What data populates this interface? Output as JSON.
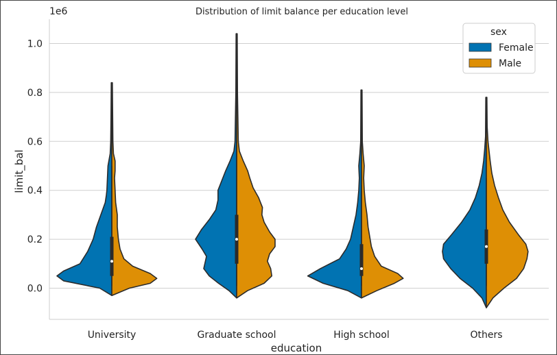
{
  "chart_data": {
    "type": "violin",
    "title": "Distribution of limit balance per education level",
    "xlabel": "education",
    "ylabel": "limit_bal",
    "y_scale_label": "1e6",
    "categories": [
      "University",
      "Graduate school",
      "High school",
      "Others"
    ],
    "ylim": [
      -0.13,
      1.1
    ],
    "yticks": [
      0.0,
      0.2,
      0.4,
      0.6,
      0.8,
      1.0
    ],
    "ytick_labels": [
      "0.0",
      "0.2",
      "0.4",
      "0.6",
      "0.8",
      "1.0"
    ],
    "grid": "horizontal",
    "split": true,
    "legend": {
      "title": "sex",
      "position": "top-right",
      "entries": [
        {
          "label": "Female",
          "color": "#0173b2"
        },
        {
          "label": "Male",
          "color": "#de8f05"
        }
      ]
    },
    "series": [
      {
        "name": "Female",
        "color": "#0173b2",
        "violins": [
          {
            "profile": [
              [
                -0.03,
                0
              ],
              [
                0,
                0.22
              ],
              [
                0.03,
                0.88
              ],
              [
                0.05,
                1.0
              ],
              [
                0.07,
                0.88
              ],
              [
                0.1,
                0.58
              ],
              [
                0.15,
                0.44
              ],
              [
                0.2,
                0.34
              ],
              [
                0.25,
                0.28
              ],
              [
                0.3,
                0.2
              ],
              [
                0.35,
                0.12
              ],
              [
                0.38,
                0.1
              ],
              [
                0.4,
                0.09
              ],
              [
                0.45,
                0.08
              ],
              [
                0.5,
                0.07
              ],
              [
                0.55,
                0.03
              ],
              [
                0.6,
                0.02
              ],
              [
                0.7,
                0.015
              ],
              [
                0.84,
                0.01
              ]
            ]
          },
          {
            "profile": [
              [
                -0.04,
                0
              ],
              [
                -0.01,
                0.14
              ],
              [
                0.02,
                0.33
              ],
              [
                0.05,
                0.5
              ],
              [
                0.08,
                0.6
              ],
              [
                0.1,
                0.58
              ],
              [
                0.13,
                0.55
              ],
              [
                0.16,
                0.63
              ],
              [
                0.2,
                0.75
              ],
              [
                0.24,
                0.64
              ],
              [
                0.28,
                0.5
              ],
              [
                0.32,
                0.38
              ],
              [
                0.36,
                0.34
              ],
              [
                0.4,
                0.34
              ],
              [
                0.44,
                0.27
              ],
              [
                0.48,
                0.2
              ],
              [
                0.52,
                0.12
              ],
              [
                0.56,
                0.05
              ],
              [
                0.6,
                0.03
              ],
              [
                0.8,
                0.015
              ],
              [
                1.04,
                0.01
              ]
            ]
          },
          {
            "profile": [
              [
                -0.04,
                0
              ],
              [
                -0.01,
                0.25
              ],
              [
                0.02,
                0.7
              ],
              [
                0.05,
                0.98
              ],
              [
                0.08,
                0.75
              ],
              [
                0.12,
                0.4
              ],
              [
                0.16,
                0.28
              ],
              [
                0.2,
                0.2
              ],
              [
                0.25,
                0.15
              ],
              [
                0.3,
                0.1
              ],
              [
                0.35,
                0.07
              ],
              [
                0.4,
                0.05
              ],
              [
                0.45,
                0.04
              ],
              [
                0.5,
                0.05
              ],
              [
                0.55,
                0.03
              ],
              [
                0.6,
                0.015
              ],
              [
                0.81,
                0.01
              ]
            ]
          },
          {
            "profile": [
              [
                -0.08,
                0
              ],
              [
                -0.04,
                0.08
              ],
              [
                0.0,
                0.25
              ],
              [
                0.04,
                0.48
              ],
              [
                0.08,
                0.65
              ],
              [
                0.12,
                0.78
              ],
              [
                0.15,
                0.8
              ],
              [
                0.18,
                0.78
              ],
              [
                0.22,
                0.63
              ],
              [
                0.27,
                0.45
              ],
              [
                0.32,
                0.3
              ],
              [
                0.37,
                0.2
              ],
              [
                0.42,
                0.13
              ],
              [
                0.47,
                0.08
              ],
              [
                0.52,
                0.05
              ],
              [
                0.57,
                0.03
              ],
              [
                0.62,
                0.015
              ],
              [
                0.78,
                0.01
              ]
            ]
          }
        ]
      },
      {
        "name": "Male",
        "color": "#de8f05",
        "violins": [
          {
            "profile": [
              [
                -0.03,
                0
              ],
              [
                0,
                0.32
              ],
              [
                0.02,
                0.7
              ],
              [
                0.04,
                0.82
              ],
              [
                0.06,
                0.7
              ],
              [
                0.09,
                0.38
              ],
              [
                0.12,
                0.22
              ],
              [
                0.16,
                0.15
              ],
              [
                0.2,
                0.12
              ],
              [
                0.25,
                0.1
              ],
              [
                0.3,
                0.1
              ],
              [
                0.35,
                0.07
              ],
              [
                0.4,
                0.06
              ],
              [
                0.45,
                0.05
              ],
              [
                0.48,
                0.06
              ],
              [
                0.52,
                0.06
              ],
              [
                0.55,
                0.03
              ],
              [
                0.6,
                0.02
              ],
              [
                0.84,
                0.01
              ]
            ]
          },
          {
            "profile": [
              [
                -0.04,
                0
              ],
              [
                -0.01,
                0.2
              ],
              [
                0.02,
                0.5
              ],
              [
                0.05,
                0.64
              ],
              [
                0.08,
                0.62
              ],
              [
                0.11,
                0.56
              ],
              [
                0.14,
                0.6
              ],
              [
                0.17,
                0.7
              ],
              [
                0.2,
                0.7
              ],
              [
                0.23,
                0.6
              ],
              [
                0.27,
                0.5
              ],
              [
                0.3,
                0.46
              ],
              [
                0.33,
                0.47
              ],
              [
                0.37,
                0.4
              ],
              [
                0.41,
                0.3
              ],
              [
                0.45,
                0.24
              ],
              [
                0.48,
                0.2
              ],
              [
                0.52,
                0.12
              ],
              [
                0.56,
                0.05
              ],
              [
                0.6,
                0.03
              ],
              [
                0.8,
                0.015
              ],
              [
                1.04,
                0.01
              ]
            ]
          },
          {
            "profile": [
              [
                -0.04,
                0
              ],
              [
                -0.01,
                0.28
              ],
              [
                0.02,
                0.6
              ],
              [
                0.04,
                0.76
              ],
              [
                0.06,
                0.66
              ],
              [
                0.09,
                0.36
              ],
              [
                0.13,
                0.24
              ],
              [
                0.17,
                0.18
              ],
              [
                0.21,
                0.15
              ],
              [
                0.25,
                0.12
              ],
              [
                0.3,
                0.1
              ],
              [
                0.35,
                0.07
              ],
              [
                0.4,
                0.05
              ],
              [
                0.45,
                0.04
              ],
              [
                0.5,
                0.05
              ],
              [
                0.55,
                0.03
              ],
              [
                0.6,
                0.015
              ],
              [
                0.81,
                0.01
              ]
            ]
          },
          {
            "profile": [
              [
                -0.08,
                0
              ],
              [
                -0.04,
                0.12
              ],
              [
                0.0,
                0.32
              ],
              [
                0.04,
                0.55
              ],
              [
                0.08,
                0.68
              ],
              [
                0.12,
                0.74
              ],
              [
                0.15,
                0.76
              ],
              [
                0.18,
                0.72
              ],
              [
                0.22,
                0.58
              ],
              [
                0.27,
                0.42
              ],
              [
                0.32,
                0.3
              ],
              [
                0.37,
                0.22
              ],
              [
                0.42,
                0.15
              ],
              [
                0.47,
                0.1
              ],
              [
                0.52,
                0.07
              ],
              [
                0.56,
                0.05
              ],
              [
                0.6,
                0.03
              ],
              [
                0.66,
                0.015
              ],
              [
                0.78,
                0.01
              ]
            ]
          }
        ]
      }
    ],
    "boxes": [
      {
        "q1": 0.05,
        "median": 0.11,
        "q3": 0.21,
        "wmin": 0.01,
        "wmax": 0.5
      },
      {
        "q1": 0.1,
        "median": 0.2,
        "q3": 0.3,
        "wmin": 0.01,
        "wmax": 0.6
      },
      {
        "q1": 0.05,
        "median": 0.08,
        "q3": 0.18,
        "wmin": 0.01,
        "wmax": 0.42
      },
      {
        "q1": 0.1,
        "median": 0.17,
        "q3": 0.24,
        "wmin": 0.01,
        "wmax": 0.45
      }
    ]
  }
}
